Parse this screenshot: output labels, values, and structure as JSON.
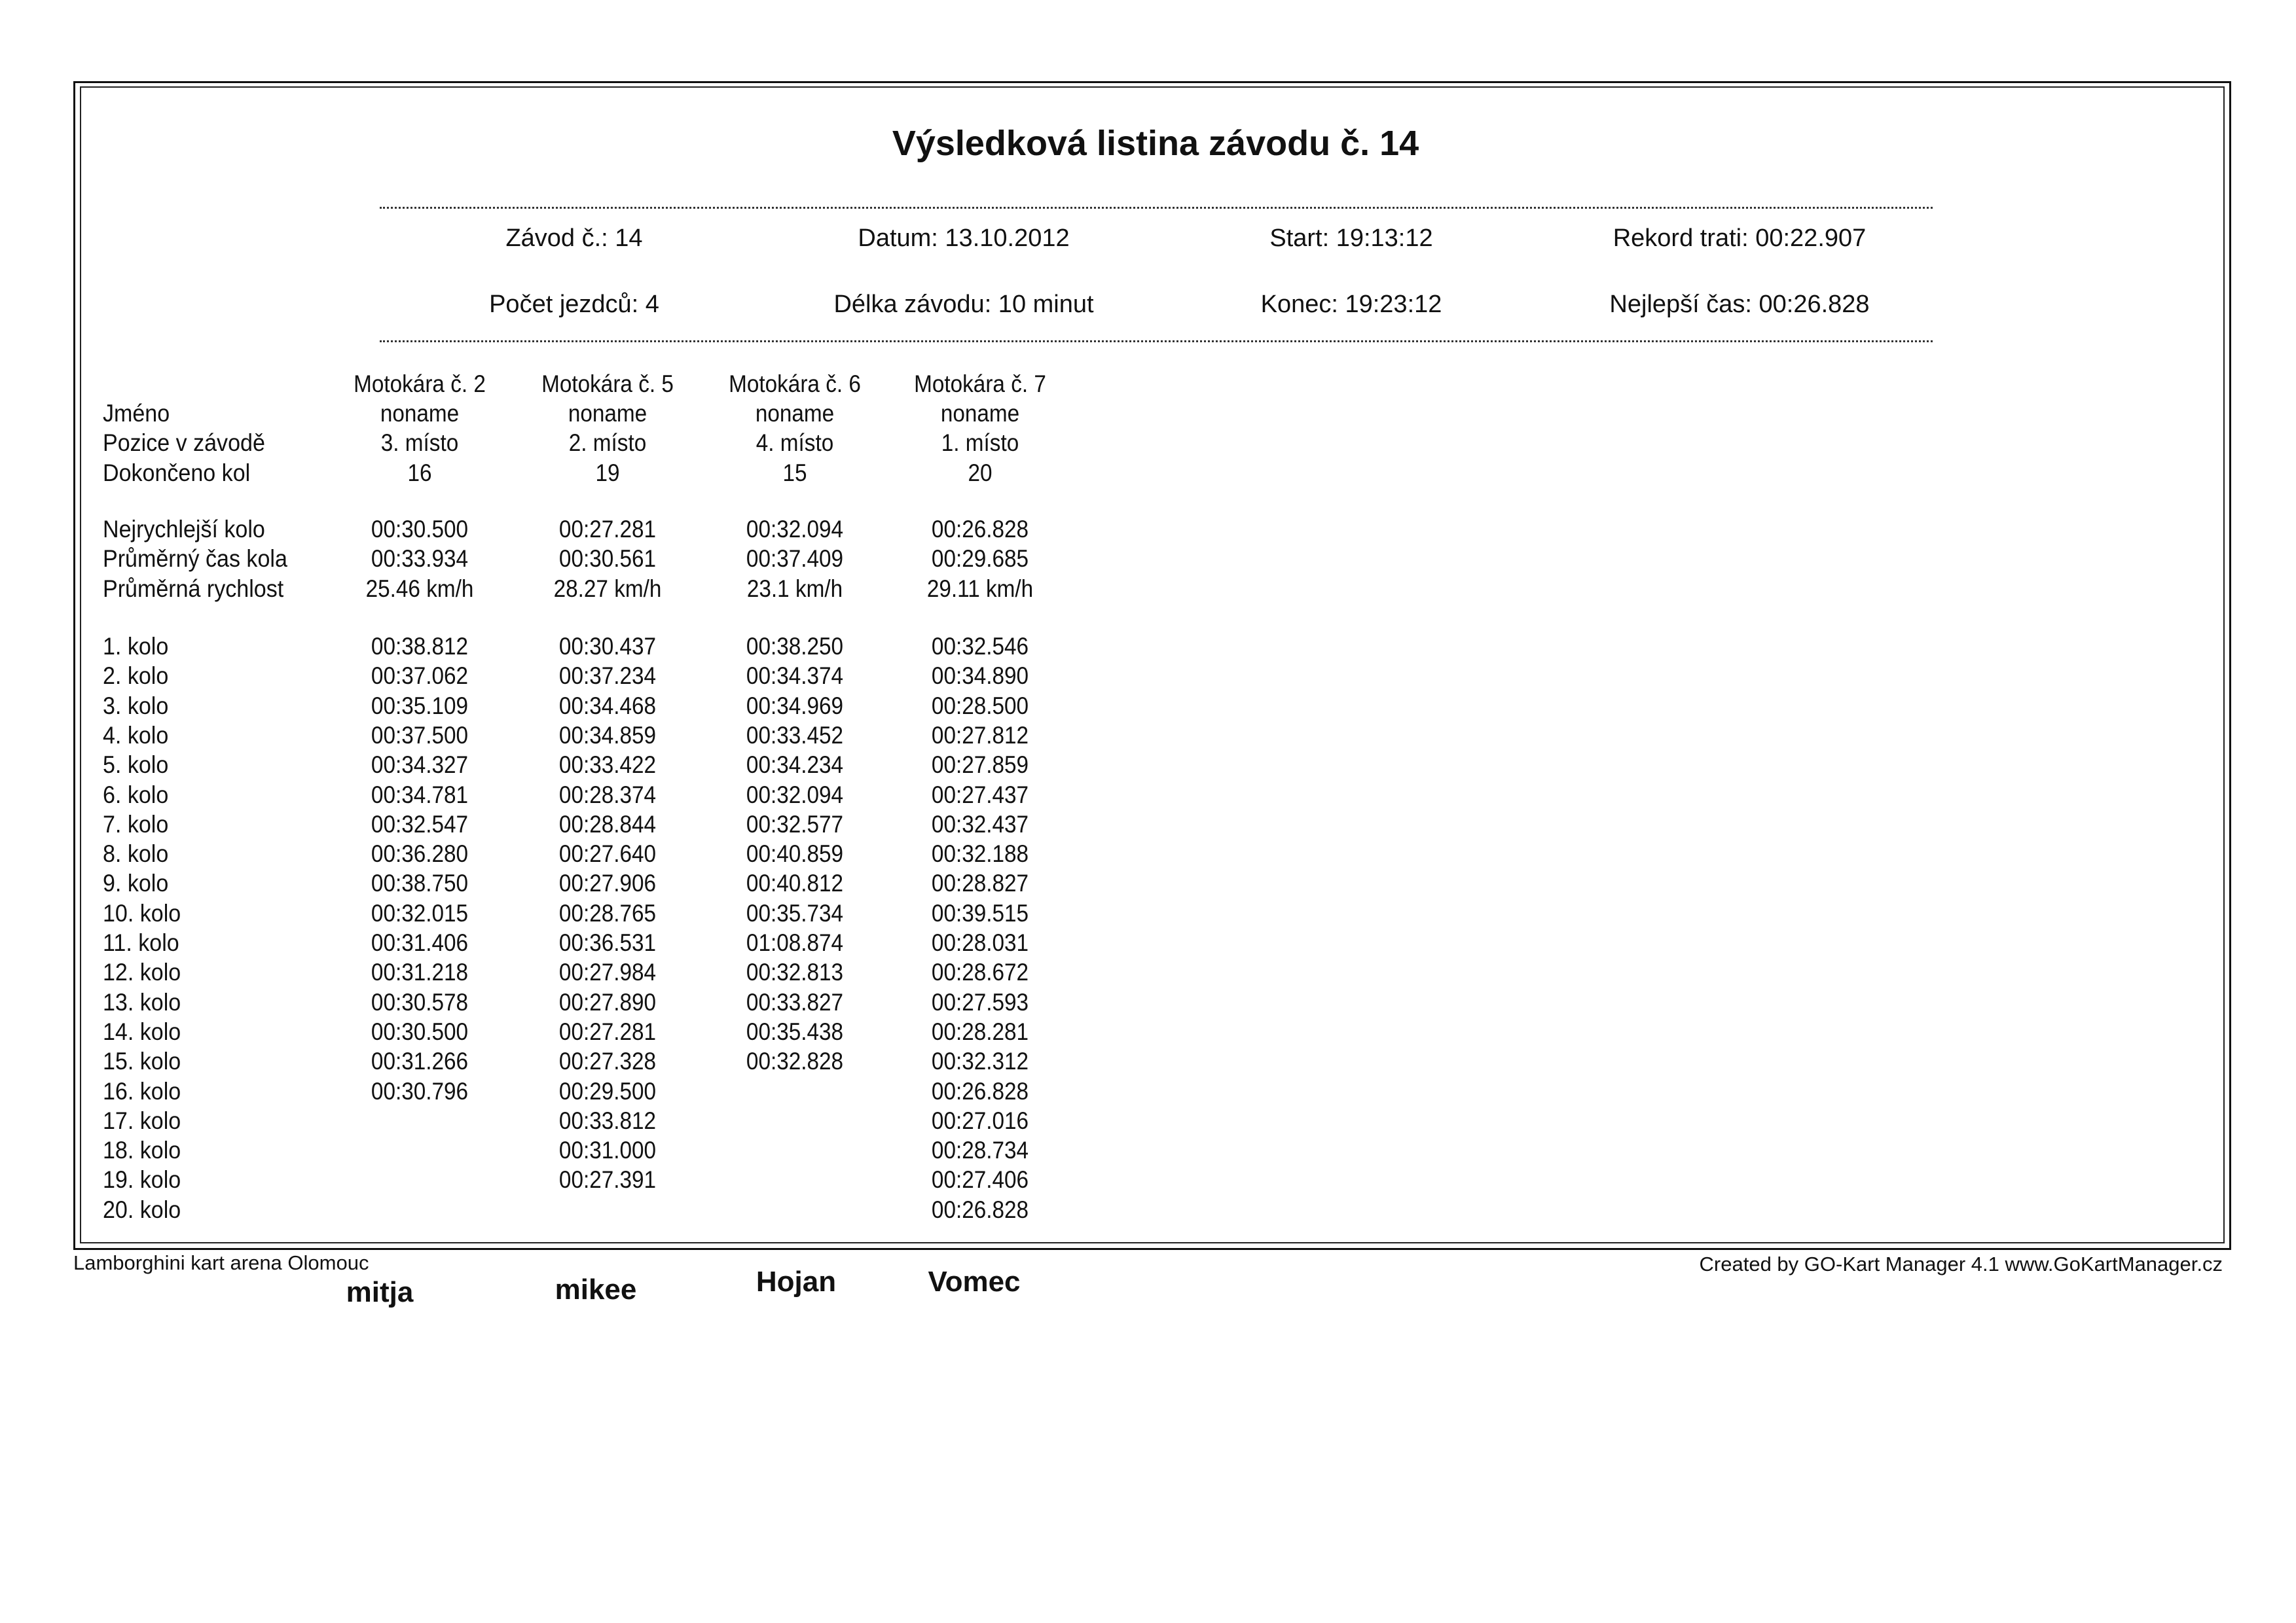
{
  "title": "Výsledková listina závodu č. 14",
  "info": [
    [
      "Závod č.: 14",
      "Datum: 13.10.2012",
      "Start: 19:13:12",
      "Rekord trati: 00:22.907"
    ],
    [
      "Počet jezdců: 4",
      "Délka závodu: 10 minut",
      "Konec: 19:23:12",
      "Nejlepší čas: 00:26.828"
    ]
  ],
  "columns": [
    "Motokára č. 2",
    "Motokára č. 5",
    "Motokára č. 6",
    "Motokára č. 7"
  ],
  "summary_rows": [
    {
      "label": "Jméno",
      "values": [
        "noname",
        "noname",
        "noname",
        "noname"
      ]
    },
    {
      "label": "Pozice v závodě",
      "values": [
        "3. místo",
        "2. místo",
        "4. místo",
        "1. místo"
      ]
    },
    {
      "label": "Dokončeno kol",
      "values": [
        "16",
        "19",
        "15",
        "20"
      ]
    }
  ],
  "stats_rows": [
    {
      "label": "Nejrychlejší kolo",
      "values": [
        "00:30.500",
        "00:27.281",
        "00:32.094",
        "00:26.828"
      ]
    },
    {
      "label": "Průměrný čas kola",
      "values": [
        "00:33.934",
        "00:30.561",
        "00:37.409",
        "00:29.685"
      ]
    },
    {
      "label": "Průměrná rychlost",
      "values": [
        "25.46 km/h",
        "28.27 km/h",
        "23.1 km/h",
        "29.11 km/h"
      ]
    }
  ],
  "lap_rows": [
    {
      "label": "1. kolo",
      "values": [
        "00:38.812",
        "00:30.437",
        "00:38.250",
        "00:32.546"
      ]
    },
    {
      "label": "2. kolo",
      "values": [
        "00:37.062",
        "00:37.234",
        "00:34.374",
        "00:34.890"
      ]
    },
    {
      "label": "3. kolo",
      "values": [
        "00:35.109",
        "00:34.468",
        "00:34.969",
        "00:28.500"
      ]
    },
    {
      "label": "4. kolo",
      "values": [
        "00:37.500",
        "00:34.859",
        "00:33.452",
        "00:27.812"
      ]
    },
    {
      "label": "5. kolo",
      "values": [
        "00:34.327",
        "00:33.422",
        "00:34.234",
        "00:27.859"
      ]
    },
    {
      "label": "6. kolo",
      "values": [
        "00:34.781",
        "00:28.374",
        "00:32.094",
        "00:27.437"
      ]
    },
    {
      "label": "7. kolo",
      "values": [
        "00:32.547",
        "00:28.844",
        "00:32.577",
        "00:32.437"
      ]
    },
    {
      "label": "8. kolo",
      "values": [
        "00:36.280",
        "00:27.640",
        "00:40.859",
        "00:32.188"
      ]
    },
    {
      "label": "9. kolo",
      "values": [
        "00:38.750",
        "00:27.906",
        "00:40.812",
        "00:28.827"
      ]
    },
    {
      "label": "10. kolo",
      "values": [
        "00:32.015",
        "00:28.765",
        "00:35.734",
        "00:39.515"
      ]
    },
    {
      "label": "11. kolo",
      "values": [
        "00:31.406",
        "00:36.531",
        "01:08.874",
        "00:28.031"
      ]
    },
    {
      "label": "12. kolo",
      "values": [
        "00:31.218",
        "00:27.984",
        "00:32.813",
        "00:28.672"
      ]
    },
    {
      "label": "13. kolo",
      "values": [
        "00:30.578",
        "00:27.890",
        "00:33.827",
        "00:27.593"
      ]
    },
    {
      "label": "14. kolo",
      "values": [
        "00:30.500",
        "00:27.281",
        "00:35.438",
        "00:28.281"
      ]
    },
    {
      "label": "15. kolo",
      "values": [
        "00:31.266",
        "00:27.328",
        "00:32.828",
        "00:32.312"
      ]
    },
    {
      "label": "16. kolo",
      "values": [
        "00:30.796",
        "00:29.500",
        "",
        "00:26.828"
      ]
    },
    {
      "label": "17. kolo",
      "values": [
        "",
        "00:33.812",
        "",
        "00:27.016"
      ]
    },
    {
      "label": "18. kolo",
      "values": [
        "",
        "00:31.000",
        "",
        "00:28.734"
      ]
    },
    {
      "label": "19. kolo",
      "values": [
        "",
        "00:27.391",
        "",
        "00:27.406"
      ]
    },
    {
      "label": "20. kolo",
      "values": [
        "",
        "",
        "",
        "00:26.828"
      ]
    }
  ],
  "footer": {
    "left": "Lamborghini kart arena Olomouc",
    "right": "Created by GO-Kart Manager 4.1 www.GoKartManager.cz"
  },
  "handwritten_names": [
    "mitja",
    "mikee",
    "Hojan",
    "Vomec"
  ]
}
